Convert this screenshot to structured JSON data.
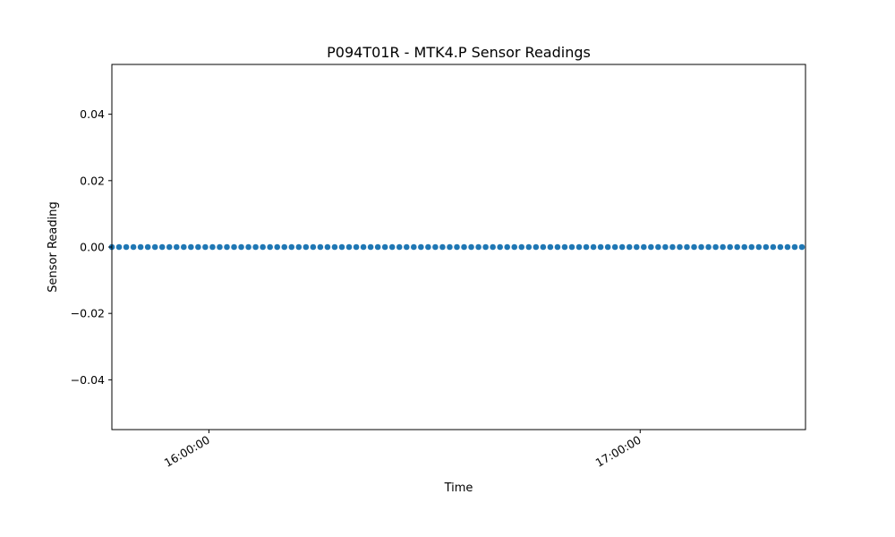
{
  "chart_data": {
    "type": "scatter",
    "title": "P094T01R - MTK4.P Sensor Readings",
    "xlabel": "Time",
    "ylabel": "Sensor Reading",
    "x_start": "15:46:30",
    "x_end": "17:23:00",
    "xlim": [
      "15:46:30",
      "17:23:00"
    ],
    "ylim": [
      -0.055,
      0.055
    ],
    "y_ticks": [
      -0.04,
      -0.02,
      0.0,
      0.02,
      0.04
    ],
    "y_tick_labels": [
      "−0.04",
      "−0.02",
      "0.00",
      "0.02",
      "0.04"
    ],
    "x_ticks": [
      "16:00:00",
      "17:00:00"
    ],
    "x_tick_labels": [
      "16:00:00",
      "17:00:00"
    ],
    "series_value": 0.0,
    "marker_color": "#1f77b4",
    "grid": false,
    "legend": "none"
  }
}
